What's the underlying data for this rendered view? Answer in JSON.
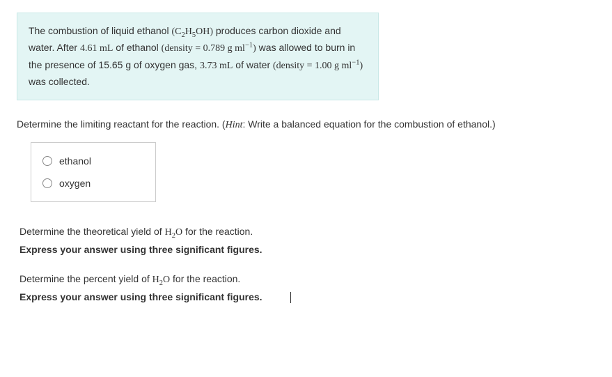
{
  "info": {
    "pre1": "The combustion of liquid ethanol ",
    "formula_ethanol": "(C₂H₅OH)",
    "post1": " produces carbon dioxide and water. After ",
    "vol_ethanol": "4.61 mL",
    "post2": " of ethanol ",
    "density1_open": "(density = ",
    "density1_val": "0.789 g ml",
    "density1_exp": "−1",
    "density1_close": ")",
    "post3": " was allowed to burn in the presence of ",
    "mass_o2": "15.65 g",
    "post4": " of oxygen gas, ",
    "vol_water": "3.73 mL",
    "post5": " of water ",
    "density2_open": "(density = ",
    "density2_val": "1.00 g ml",
    "density2_exp": "−1",
    "density2_close": ")",
    "post6": " was collected."
  },
  "q1": {
    "prompt_pre": "Determine the limiting reactant for the reaction. (",
    "hint_label": "Hint",
    "hint_text": ": Write a balanced equation for the combustion of ethanol.)",
    "options": {
      "a": "ethanol",
      "b": "oxygen"
    }
  },
  "q2": {
    "line_pre": "Determine the theoretical yield of ",
    "formula": "H₂O",
    "line_post": " for the reaction.",
    "instr": "Express your answer using three significant figures."
  },
  "q3": {
    "line_pre": "Determine the percent yield of ",
    "formula": "H₂O",
    "line_post": " for the reaction.",
    "instr": "Express your answer using three significant figures."
  }
}
